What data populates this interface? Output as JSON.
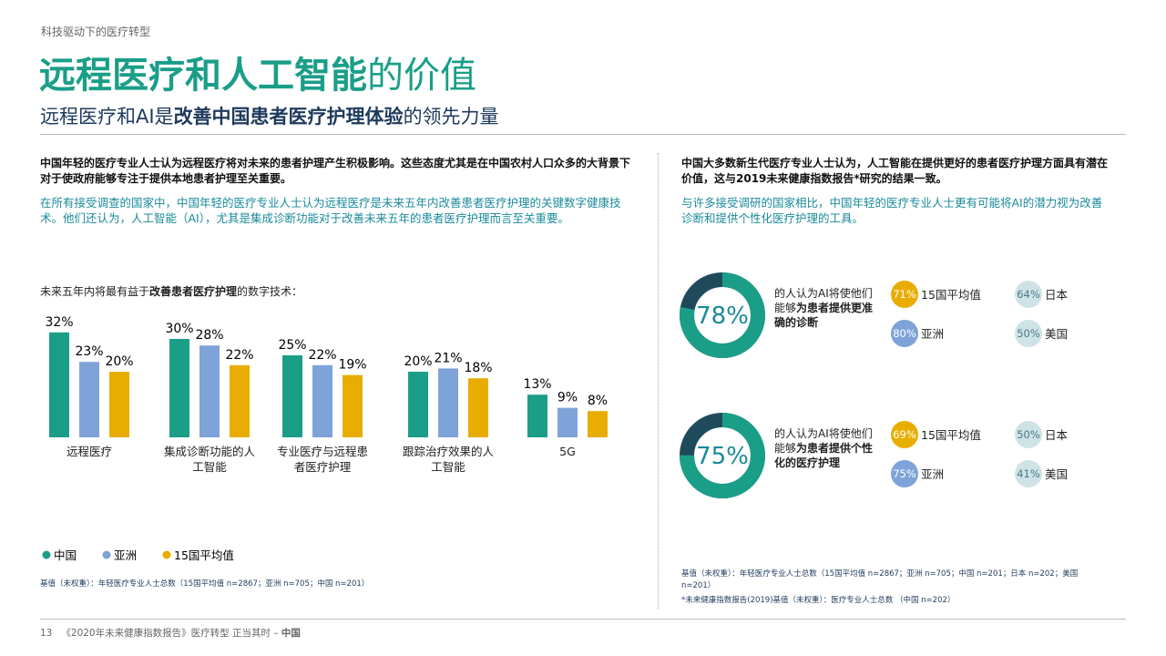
{
  "header": {
    "kicker": "科技驱动下的医疗转型",
    "title_main": "远程医疗和人工智能",
    "title_rest": "的价值",
    "subtitle_a": "远程医疗和AI是",
    "subtitle_b": "改善中国患者医疗护理体验",
    "subtitle_c": "的领先力量"
  },
  "left": {
    "lead": "中国年轻的医疗专业人士认为远程医疗将对未来的患者护理产生积极影响。这些态度尤其是在中国农村人口众多的大背景下对于使政府能够专注于提供本地患者护理至关重要。",
    "body": "在所有接受调查的国家中，中国年轻的医疗专业人士认为远程医疗是未来五年内改善患者医疗护理的关键数字健康技术。他们还认为，人工智能（AI），尤其是集成诊断功能对于改善未来五年的患者医疗护理而言至关重要。",
    "note": "基值（未权重）：年轻医疗专业人士总数（15国平均值 n=2867；亚洲 n=705；中国 n=201）"
  },
  "chart_data": {
    "type": "bar",
    "title_a": "未来五年内将最有益于",
    "title_b": "改善患者医疗护理",
    "title_c": "的数字技术：",
    "categories": [
      "远程医疗",
      "集成诊断功能的人工智能",
      "专业医疗与远程患者医疗护理",
      "跟踪治疗效果的人工智能",
      "5G"
    ],
    "series": [
      {
        "name": "中国",
        "color": "#1a9e88",
        "values": [
          32,
          30,
          25,
          20,
          13
        ],
        "value_labels": [
          "32%",
          "30%",
          "25%",
          "20%",
          "13%"
        ]
      },
      {
        "name": "亚洲",
        "color": "#7ea3d8",
        "values": [
          23,
          28,
          22,
          21,
          9
        ],
        "value_labels": [
          "23%",
          "28%",
          "22%",
          "21%",
          "9%"
        ]
      },
      {
        "name": "15国平均值",
        "color": "#e8ad00",
        "values": [
          20,
          22,
          19,
          18,
          8
        ],
        "value_labels": [
          "20%",
          "22%",
          "19%",
          "18%",
          "8%"
        ]
      }
    ],
    "ylim": [
      0,
      35
    ]
  },
  "right": {
    "lead": "中国大多数新生代医疗专业人士认为，人工智能在提供更好的患者医疗护理方面具有潜在价值，这与2019未来健康指数报告*研究的结果一致。",
    "body": "与许多接受调研的国家相比，中国年轻的医疗专业人士更有可能将AI的潜力视为改善诊断和提供个性化医疗护理的工具。",
    "note1": "基值（未权重）：年轻医疗专业人士总数（15国平均值 n=2867；亚洲 n=705；中国 n=201；日本 n=202；美国 n=201）",
    "note2": "*未来健康指数报告(2019)基值（未权重）：医疗专业人士总数 （中国 n=202）"
  },
  "donuts": [
    {
      "value": 78,
      "label": "78%",
      "text_a": "的人认为AI将使他们能够",
      "text_b": "为患者提供更准确的诊断",
      "stats": [
        {
          "value": 71,
          "label": "71%",
          "name": "15国平均值",
          "color": "#e8ad00"
        },
        {
          "value": 64,
          "label": "64%",
          "name": "日本",
          "color": "#cfe3e6"
        },
        {
          "value": 80,
          "label": "80%",
          "name": "亚洲",
          "color": "#7ea3d8"
        },
        {
          "value": 50,
          "label": "50%",
          "name": "美国",
          "color": "#cfe3e6"
        }
      ]
    },
    {
      "value": 75,
      "label": "75%",
      "text_a": "的人认为AI将使他们能够",
      "text_b": "为患者提供个性化的医疗护理",
      "stats": [
        {
          "value": 69,
          "label": "69%",
          "name": "15国平均值",
          "color": "#e8ad00"
        },
        {
          "value": 50,
          "label": "50%",
          "name": "日本",
          "color": "#cfe3e6"
        },
        {
          "value": 75,
          "label": "75%",
          "name": "亚洲",
          "color": "#7ea3d8"
        },
        {
          "value": 41,
          "label": "41%",
          "name": "美国",
          "color": "#cfe3e6"
        }
      ]
    }
  ],
  "footer": {
    "page": "13",
    "text": "《2020年未来健康指数报告》医疗转型 正当其时 – ",
    "country": "中国"
  }
}
